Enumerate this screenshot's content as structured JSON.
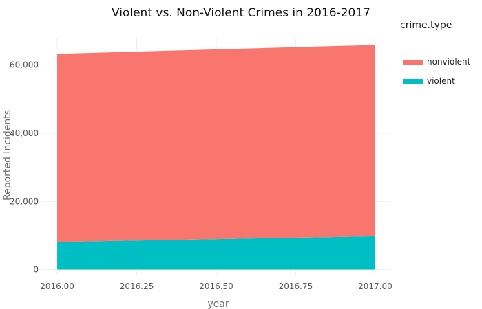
{
  "chart_data": {
    "type": "area",
    "stacked": true,
    "title": "Violent vs. Non-Violent Crimes in 2016-2017",
    "xlabel": "year",
    "ylabel": "Reported Incidents",
    "x": [
      2016.0,
      2017.0
    ],
    "xlim": [
      2015.95,
      2017.05
    ],
    "ylim": [
      -1500,
      68000
    ],
    "x_ticks": [
      2016.0,
      2016.25,
      2016.5,
      2016.75,
      2017.0
    ],
    "x_tick_labels": [
      "2016.00",
      "2016.25",
      "2016.50",
      "2016.75",
      "2017.00"
    ],
    "y_ticks": [
      0,
      20000,
      40000,
      60000
    ],
    "y_tick_labels": [
      "0",
      "20,000",
      "40,000",
      "60,000"
    ],
    "grid": true,
    "legend": {
      "title": "crime.type",
      "position": "right"
    },
    "series": [
      {
        "name": "violent",
        "color": "#00BFC4",
        "values": [
          8100,
          9800
        ]
      },
      {
        "name": "nonviolent",
        "color": "#F8766D",
        "values": [
          55200,
          56100
        ]
      }
    ]
  }
}
